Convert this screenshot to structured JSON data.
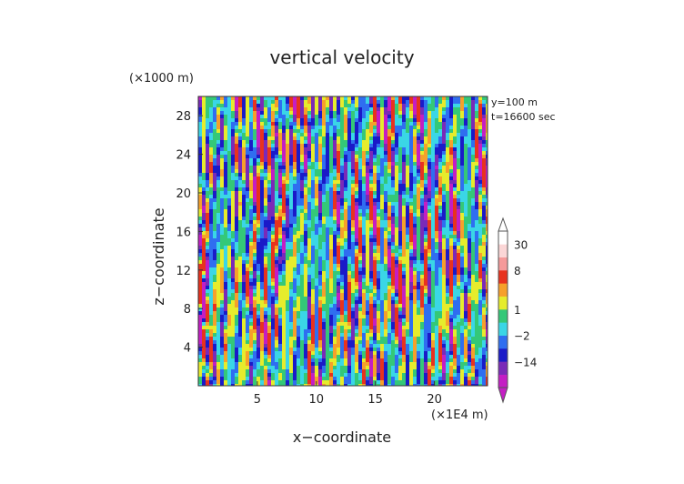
{
  "chart_data": {
    "type": "heatmap",
    "title": "vertical velocity",
    "xlabel": "x−coordinate",
    "ylabel": "z−coordinate",
    "x_unit": "(×1E4 m)",
    "y_unit": "(×1000 m)",
    "xlim": [
      0,
      24.5
    ],
    "ylim": [
      0,
      30
    ],
    "x_ticks": [
      5,
      10,
      15,
      20
    ],
    "y_ticks": [
      4,
      8,
      12,
      16,
      20,
      24,
      28
    ],
    "annotations": [
      "y=100 m",
      "t=16600 sec"
    ],
    "colorbar": {
      "tick_labels": [
        "30",
        "8",
        "1",
        "−2",
        "−14"
      ],
      "ticks": [
        30,
        8,
        1,
        -2,
        -14
      ],
      "levels": [
        -30,
        -14,
        -8,
        -2,
        -1,
        1,
        2,
        4,
        8,
        16,
        30
      ],
      "colors": [
        "#c41ec4",
        "#7a2ab8",
        "#1a1ac8",
        "#2f6ef0",
        "#3ad6e6",
        "#34c878",
        "#e6ec2c",
        "#f6a02a",
        "#e8321e",
        "#f59a9a",
        "#fbd6d6",
        "#ffffff"
      ]
    }
  }
}
